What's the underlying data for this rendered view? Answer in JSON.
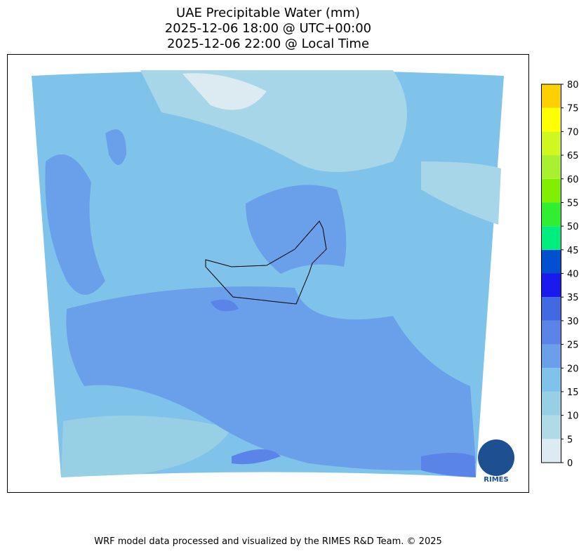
{
  "title": [
    "UAE Precipitable Water (mm)",
    "2025-12-06 18:00 @ UTC+00:00",
    "2025-12-06 22:00 @ Local Time"
  ],
  "colorbar": {
    "ticks": [
      0,
      5,
      10,
      15,
      20,
      25,
      30,
      35,
      40,
      45,
      50,
      55,
      60,
      65,
      70,
      75,
      80
    ],
    "colors": [
      "#dcebf2",
      "#b0dae6",
      "#97d0e4",
      "#80c3ea",
      "#6a9fea",
      "#5a84e8",
      "#4169e1",
      "#1a1aee",
      "#0050d0",
      "#00ee80",
      "#30ee30",
      "#80f000",
      "#a8f030",
      "#d0f820",
      "#ffff00",
      "#ffd000"
    ]
  },
  "logo": "RIMES",
  "footer": "WRF model data processed and visualized by the RIMES R&D Team. © 2025"
}
